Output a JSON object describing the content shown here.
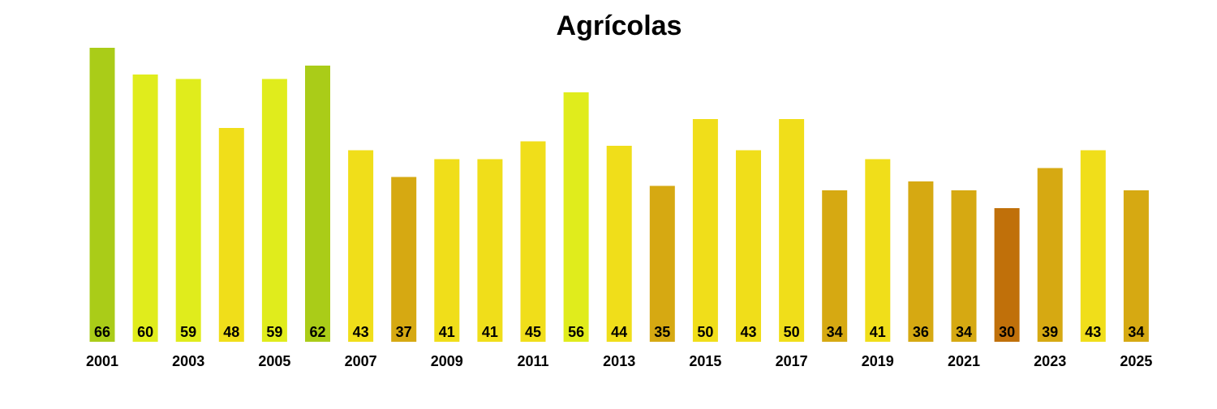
{
  "chart_data": {
    "type": "bar",
    "title": "Agrícolas",
    "xlabel": "",
    "ylabel": "",
    "categories": [
      "2001",
      "2002",
      "2003",
      "2004",
      "2005",
      "2006",
      "2007",
      "2008",
      "2009",
      "2010",
      "2011",
      "2012",
      "2013",
      "2014",
      "2015",
      "2016",
      "2017",
      "2018",
      "2019",
      "2020",
      "2021",
      "2022",
      "2023",
      "2024",
      "2025"
    ],
    "x_tick_labels": [
      "2001",
      "2003",
      "2005",
      "2007",
      "2009",
      "2011",
      "2013",
      "2015",
      "2017",
      "2019",
      "2021",
      "2023",
      "2025"
    ],
    "values": [
      66,
      60,
      59,
      48,
      59,
      62,
      43,
      37,
      41,
      41,
      45,
      56,
      44,
      35,
      50,
      43,
      50,
      34,
      41,
      36,
      34,
      30,
      39,
      43,
      34
    ],
    "bar_colors": [
      "#AACC18",
      "#E0EC1C",
      "#E0EC1C",
      "#F0DE1A",
      "#E0EC1C",
      "#AACC18",
      "#F0DE1A",
      "#D6A912",
      "#F0DE1A",
      "#F0DE1A",
      "#F0DE1A",
      "#E0EC1C",
      "#F0DE1A",
      "#D6A912",
      "#F0DE1A",
      "#F0DE1A",
      "#F0DE1A",
      "#D6A912",
      "#F0DE1A",
      "#D6A912",
      "#D6A912",
      "#C0700A",
      "#D6A912",
      "#F0DE1A",
      "#D6A912"
    ],
    "ylim": [
      0,
      66
    ],
    "grid": false,
    "legend": "none",
    "data_labels": true
  }
}
